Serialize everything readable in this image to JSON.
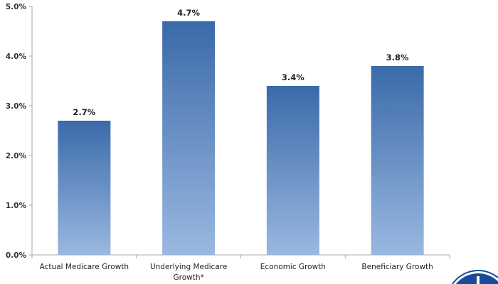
{
  "chart_data": {
    "type": "bar",
    "title": "",
    "xlabel": "",
    "ylabel": "",
    "categories": [
      [
        "Actual Medicare Growth"
      ],
      [
        "Underlying Medicare",
        "Growth*"
      ],
      [
        "Economic Growth"
      ],
      [
        "Beneficiary Growth"
      ]
    ],
    "values": [
      2.7,
      4.7,
      3.4,
      3.8
    ],
    "data_labels": [
      "2.7%",
      "4.7%",
      "3.4%",
      "3.8%"
    ],
    "ylim": [
      0,
      5
    ],
    "yticks": [
      0,
      1,
      2,
      3,
      4,
      5
    ],
    "ytick_labels": [
      "0.0%",
      "1.0%",
      "2.0%",
      "3.0%",
      "4.0%",
      "5.0%"
    ],
    "grid": false,
    "colors": {
      "bar_top": "#3a6aaa",
      "bar_bottom": "#9ab8e0",
      "axis": "#aaaaaa",
      "logo": "#1a4a9a"
    }
  }
}
